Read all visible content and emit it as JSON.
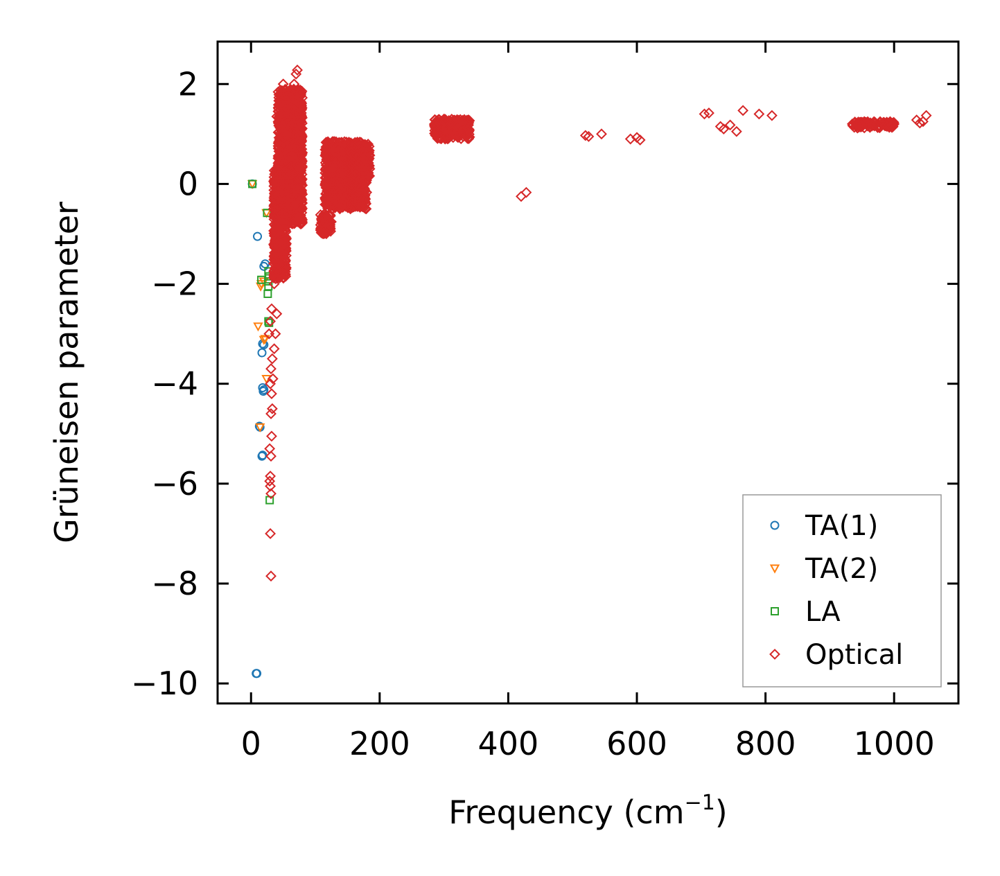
{
  "chart_data": {
    "type": "scatter",
    "title": "",
    "xlabel": "Frequency (cm",
    "xlabel_sup": "−1",
    "xlabel_close": ")",
    "ylabel": "Grüneisen parameter",
    "xlim": [
      -52,
      1100
    ],
    "ylim": [
      -10.4,
      2.85
    ],
    "xticks": [
      0,
      200,
      400,
      600,
      800,
      1000
    ],
    "yticks": [
      2,
      0,
      -2,
      -4,
      -6,
      -8,
      -10
    ],
    "xtick_labels": [
      "0",
      "200",
      "400",
      "600",
      "800",
      "1000"
    ],
    "ytick_labels": [
      "2",
      "0",
      "−2",
      "−4",
      "−6",
      "−8",
      "−10"
    ],
    "legend_position": "lower-right",
    "series": [
      {
        "name": "TA(1)",
        "marker": "circle",
        "color": "#1f77b4",
        "points": [
          [
            2,
            0
          ],
          [
            10,
            -1.05
          ],
          [
            20,
            -1.65
          ],
          [
            22,
            -1.6
          ],
          [
            18,
            -3.2
          ],
          [
            20,
            -3.22
          ],
          [
            17,
            -3.38
          ],
          [
            18,
            -4.08
          ],
          [
            20,
            -4.12
          ],
          [
            19,
            -4.15
          ],
          [
            14,
            -4.87
          ],
          [
            13,
            -4.85
          ],
          [
            17,
            -5.45
          ],
          [
            18,
            -5.43
          ],
          [
            8,
            -9.8
          ],
          [
            9,
            -9.8
          ]
        ]
      },
      {
        "name": "TA(2)",
        "marker": "triangle-down",
        "color": "#ff7f0e",
        "points": [
          [
            2,
            0
          ],
          [
            24,
            -0.58
          ],
          [
            20,
            -1.95
          ],
          [
            16,
            -2.0
          ],
          [
            15,
            -2.05
          ],
          [
            11,
            -2.85
          ],
          [
            22,
            -3.1
          ],
          [
            20,
            -3.12
          ],
          [
            24,
            -3.9
          ],
          [
            14,
            -4.87
          ]
        ]
      },
      {
        "name": "LA",
        "marker": "square",
        "color": "#2ca02c",
        "points": [
          [
            2,
            0
          ],
          [
            25,
            -0.58
          ],
          [
            27,
            -1.75
          ],
          [
            28,
            -1.85
          ],
          [
            27,
            -1.95
          ],
          [
            16,
            -1.92
          ],
          [
            27,
            -2.05
          ],
          [
            26,
            -2.2
          ],
          [
            27,
            -2.75
          ],
          [
            28,
            -2.78
          ],
          [
            29,
            -6.33
          ]
        ]
      },
      {
        "name": "Optical",
        "marker": "diamond",
        "color": "#d62728",
        "points": [
          [
            40,
            1.35
          ],
          [
            45,
            1.6
          ],
          [
            50,
            2.0
          ],
          [
            55,
            1.75
          ],
          [
            60,
            1.6
          ],
          [
            65,
            1.5
          ],
          [
            70,
            2.2
          ],
          [
            72,
            2.28
          ],
          [
            67,
            2.0
          ],
          [
            75,
            1.2
          ],
          [
            78,
            1.1
          ],
          [
            70,
            0.9
          ],
          [
            65,
            1.0
          ],
          [
            35,
            -0.5
          ],
          [
            38,
            -0.9
          ],
          [
            40,
            -1.2
          ],
          [
            42,
            -1.6
          ],
          [
            36,
            -2.0
          ],
          [
            32,
            -2.5
          ],
          [
            30,
            -2.75
          ],
          [
            28,
            -3.0
          ],
          [
            33,
            -3.5
          ],
          [
            31,
            -3.7
          ],
          [
            30,
            -4.0
          ],
          [
            32,
            -4.2
          ],
          [
            33,
            -4.5
          ],
          [
            31,
            -4.6
          ],
          [
            32,
            -5.05
          ],
          [
            29,
            -5.3
          ],
          [
            31,
            -5.45
          ],
          [
            30,
            -5.85
          ],
          [
            29,
            -5.95
          ],
          [
            30,
            -6.05
          ],
          [
            31,
            -6.2
          ],
          [
            30,
            -7.0
          ],
          [
            31,
            -7.85
          ],
          [
            40,
            -2.6
          ],
          [
            38,
            -3.0
          ],
          [
            36,
            -3.3
          ],
          [
            34,
            -3.9
          ],
          [
            45,
            0.2
          ],
          [
            75,
            0.3
          ],
          [
            60,
            -0.1
          ],
          [
            62,
            -0.4
          ],
          [
            295,
            1.0
          ],
          [
            305,
            1.15
          ],
          [
            310,
            1.2
          ],
          [
            330,
            0.95
          ],
          [
            420,
            -0.25
          ],
          [
            428,
            -0.17
          ],
          [
            520,
            0.97
          ],
          [
            525,
            0.95
          ],
          [
            545,
            1.0
          ],
          [
            590,
            0.9
          ],
          [
            600,
            0.93
          ],
          [
            605,
            0.88
          ],
          [
            705,
            1.4
          ],
          [
            712,
            1.42
          ],
          [
            730,
            1.15
          ],
          [
            735,
            1.1
          ],
          [
            745,
            1.18
          ],
          [
            755,
            1.05
          ],
          [
            765,
            1.47
          ],
          [
            790,
            1.4
          ],
          [
            810,
            1.37
          ],
          [
            935,
            1.2
          ],
          [
            945,
            1.2
          ],
          [
            950,
            1.15
          ],
          [
            980,
            1.2
          ],
          [
            990,
            1.22
          ],
          [
            1000,
            1.2
          ],
          [
            1035,
            1.28
          ],
          [
            1040,
            1.22
          ],
          [
            1045,
            1.25
          ],
          [
            1050,
            1.37
          ]
        ],
        "clusters": [
          {
            "x_range": [
              42,
              80
            ],
            "y_range": [
              -0.8,
              1.9
            ]
          },
          {
            "x_range": [
              35,
              55
            ],
            "y_range": [
              -1.9,
              0.3
            ]
          },
          {
            "x_range": [
              108,
              125
            ],
            "y_range": [
              -1.0,
              -0.6
            ]
          },
          {
            "x_range": [
              115,
              180
            ],
            "y_range": [
              -0.5,
              0.85
            ]
          },
          {
            "x_range": [
              155,
              185
            ],
            "y_range": [
              0.1,
              0.8
            ]
          },
          {
            "x_range": [
              285,
              340
            ],
            "y_range": [
              0.9,
              1.3
            ]
          },
          {
            "x_range": [
              935,
              1000
            ],
            "y_range": [
              1.12,
              1.25
            ]
          }
        ]
      }
    ]
  }
}
